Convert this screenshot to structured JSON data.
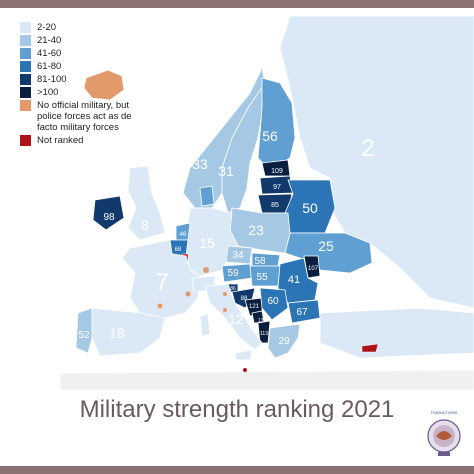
{
  "legend": {
    "items": [
      {
        "label": "2-20",
        "color": "#dbe9f6"
      },
      {
        "label": "21-40",
        "color": "#a5c8e4"
      },
      {
        "label": "41-60",
        "color": "#5f9fd1"
      },
      {
        "label": "61-80",
        "color": "#2b74b6"
      },
      {
        "label": "81-100",
        "color": "#12396b"
      },
      {
        "label": ">100",
        "color": "#0a1f3f"
      },
      {
        "label": "No official military, but\npolice forces act as de\nfacto military forces",
        "color": "#e39a6a"
      },
      {
        "label": "Not ranked",
        "color": "#b01217"
      }
    ]
  },
  "map": {
    "labels": {
      "russia": "2",
      "finland": "56",
      "sweden": "31",
      "norway": "33",
      "estonia": "109",
      "latvia": "97",
      "lithuania": "85",
      "belarus": "50",
      "ireland": "98",
      "uk": "8",
      "netherlands": "46",
      "belgium": "68",
      "germany": "15",
      "poland": "23",
      "ukraine": "25",
      "moldova": "107",
      "czechia": "34",
      "slovakia": "58",
      "austria": "59",
      "hungary": "55",
      "romania": "41",
      "france": "7",
      "spain": "18",
      "portugal": "52",
      "italy": "12",
      "croatia": "88",
      "serbia": "60",
      "bulgaria": "67",
      "bosnia": "121",
      "montenegro": "133",
      "albania": "113",
      "greece": "29",
      "slovenia": "86"
    }
  },
  "title": "Military strength ranking 2021",
  "seal": {
    "text": "TRANSITIONS"
  }
}
